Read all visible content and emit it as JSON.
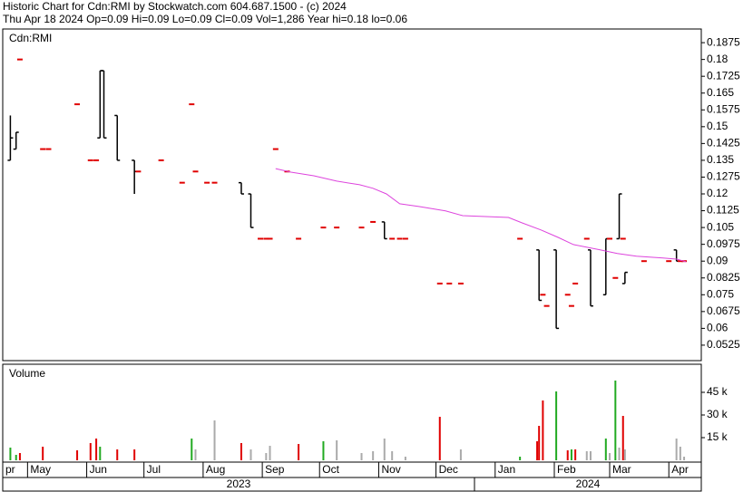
{
  "header": {
    "title": "Historic Chart for Cdn:RMI by Stockwatch.com 604.687.1500 - (c) 2024",
    "subtitle": "Thu Apr 18 2024  Op=0.09  Hi=0.09  Lo=0.09  Cl=0.09  Vol=1,286  Year hi=0.18  lo=0.06"
  },
  "chart_data": [
    {
      "type": "ohlc",
      "xlim": [
        0,
        366
      ],
      "xticks": [
        {
          "value": 0,
          "label": "pr"
        },
        {
          "value": 13,
          "label": "May"
        },
        {
          "value": 44,
          "label": "Jun"
        },
        {
          "value": 74,
          "label": "Jul"
        },
        {
          "value": 105,
          "label": "Aug"
        },
        {
          "value": 136,
          "label": "Sep"
        },
        {
          "value": 166,
          "label": "Oct"
        },
        {
          "value": 197,
          "label": "Nov"
        },
        {
          "value": 227,
          "label": "Dec"
        },
        {
          "value": 258,
          "label": "Jan"
        },
        {
          "value": 289,
          "label": "Feb"
        },
        {
          "value": 318,
          "label": "Mar"
        },
        {
          "value": 349,
          "label": "Apr"
        }
      ],
      "year_labels": [
        "2023",
        "2024"
      ],
      "ylim": [
        0.0456,
        0.1936
      ],
      "yticks": [
        0.0525,
        0.06,
        0.0675,
        0.075,
        0.0825,
        0.09,
        0.0975,
        0.105,
        0.1125,
        0.12,
        0.1275,
        0.135,
        0.1425,
        0.15,
        0.1575,
        0.165,
        0.1725,
        0.18,
        0.1875
      ],
      "series": [
        {
          "name": "Cdn:RMI",
          "range_color": "#000000",
          "flat_color": "#e00000",
          "x": [
            4,
            7,
            9,
            21,
            24,
            39,
            46,
            49,
            51,
            53,
            60,
            69,
            71,
            83,
            94,
            99,
            101,
            107,
            111,
            125,
            130,
            135,
            138,
            140,
            143,
            149,
            155,
            168,
            175,
            188,
            194,
            200,
            204,
            208,
            211,
            229,
            234,
            240,
            271,
            281,
            283,
            285,
            290,
            296,
            298,
            300,
            306,
            308,
            316,
            318,
            321,
            323,
            325,
            326,
            336,
            349,
            353,
            355,
            357
          ],
          "open": [
            0.135,
            0.14,
            0.18,
            0.14,
            0.14,
            0.16,
            0.135,
            0.135,
            0.145,
            0.175,
            0.155,
            0.135,
            0.13,
            0.135,
            0.125,
            0.16,
            0.13,
            0.125,
            0.125,
            0.125,
            0.12,
            0.1,
            0.1,
            0.1,
            0.14,
            0.13,
            0.1,
            0.105,
            0.105,
            0.105,
            0.1075,
            0.1075,
            0.1,
            0.1,
            0.1,
            0.08,
            0.08,
            0.08,
            0.1,
            0.095,
            0.075,
            0.07,
            0.095,
            0.075,
            0.07,
            0.08,
            0.1,
            0.095,
            0.075,
            0.1,
            0.0825,
            0.1,
            0.1,
            0.08,
            0.09,
            0.09,
            0.095,
            0.09,
            0.09
          ],
          "high": [
            0.155,
            0.1475,
            0.18,
            0.14,
            0.14,
            0.16,
            0.135,
            0.135,
            0.175,
            0.175,
            0.155,
            0.135,
            0.13,
            0.135,
            0.125,
            0.16,
            0.13,
            0.125,
            0.125,
            0.125,
            0.12,
            0.1,
            0.1,
            0.1,
            0.14,
            0.13,
            0.1,
            0.105,
            0.105,
            0.105,
            0.1075,
            0.1075,
            0.1,
            0.1,
            0.1,
            0.08,
            0.08,
            0.08,
            0.1,
            0.095,
            0.075,
            0.07,
            0.095,
            0.075,
            0.07,
            0.08,
            0.1,
            0.095,
            0.1,
            0.1,
            0.0825,
            0.12,
            0.1,
            0.085,
            0.09,
            0.09,
            0.095,
            0.09,
            0.09
          ],
          "low": [
            0.135,
            0.14,
            0.18,
            0.14,
            0.14,
            0.16,
            0.135,
            0.135,
            0.145,
            0.145,
            0.135,
            0.12,
            0.13,
            0.135,
            0.125,
            0.16,
            0.13,
            0.125,
            0.125,
            0.12,
            0.105,
            0.1,
            0.1,
            0.1,
            0.14,
            0.13,
            0.1,
            0.105,
            0.105,
            0.105,
            0.1075,
            0.1,
            0.1,
            0.1,
            0.1,
            0.08,
            0.08,
            0.08,
            0.1,
            0.0725,
            0.075,
            0.07,
            0.06,
            0.075,
            0.07,
            0.08,
            0.1,
            0.07,
            0.075,
            0.1,
            0.0825,
            0.1,
            0.1,
            0.08,
            0.09,
            0.09,
            0.09,
            0.09,
            0.09
          ],
          "close": [
            0.145,
            0.1475,
            0.18,
            0.14,
            0.14,
            0.16,
            0.135,
            0.135,
            0.175,
            0.145,
            0.135,
            0.13,
            0.13,
            0.135,
            0.125,
            0.16,
            0.13,
            0.125,
            0.125,
            0.12,
            0.105,
            0.1,
            0.1,
            0.1,
            0.14,
            0.13,
            0.1,
            0.105,
            0.105,
            0.105,
            0.1075,
            0.1,
            0.1,
            0.1,
            0.1,
            0.08,
            0.08,
            0.08,
            0.1,
            0.0725,
            0.075,
            0.07,
            0.06,
            0.075,
            0.07,
            0.08,
            0.1,
            0.07,
            0.1,
            0.1,
            0.0825,
            0.12,
            0.1,
            0.085,
            0.09,
            0.09,
            0.09,
            0.09,
            0.09
          ]
        },
        {
          "color": "#dd44dd",
          "x": [
            143,
            151,
            163,
            175,
            187,
            194,
            201,
            208,
            218,
            232,
            241,
            265,
            272,
            282,
            291,
            299,
            313,
            322,
            332,
            346,
            353,
            358
          ],
          "values": [
            0.1313,
            0.1297,
            0.1281,
            0.1257,
            0.1241,
            0.1225,
            0.12,
            0.1156,
            0.1144,
            0.1124,
            0.1103,
            0.1095,
            0.1071,
            0.1039,
            0.1006,
            0.0974,
            0.095,
            0.0934,
            0.0922,
            0.0914,
            0.0909,
            0.0897
          ]
        }
      ]
    },
    {
      "type": "bar",
      "title": "Volume",
      "ylim": [
        0,
        63600
      ],
      "yticks": [
        {
          "value": 15000,
          "label": "15 k"
        },
        {
          "value": 30000,
          "label": "30 k"
        },
        {
          "value": 45000,
          "label": "45 k"
        }
      ],
      "x": [
        4,
        7,
        9,
        21,
        39,
        46,
        49,
        51,
        60,
        69,
        99,
        101,
        111,
        125,
        130,
        138,
        140,
        155,
        168,
        175,
        188,
        194,
        200,
        204,
        211,
        229,
        240,
        271,
        280,
        281,
        283,
        290,
        296,
        298,
        300,
        306,
        308,
        316,
        318,
        321,
        323,
        325,
        326,
        353,
        355,
        357
      ],
      "values": [
        8400,
        3600,
        4800,
        9000,
        6600,
        11400,
        14400,
        9000,
        7200,
        7200,
        14400,
        7200,
        26400,
        11400,
        7200,
        4800,
        9600,
        10800,
        12600,
        13200,
        4800,
        6000,
        14400,
        6000,
        2400,
        28800,
        7200,
        2400,
        12600,
        22800,
        39600,
        45600,
        6600,
        7200,
        7200,
        6000,
        6000,
        14400,
        4800,
        52800,
        8400,
        29400,
        7200,
        14400,
        9000,
        2400
      ],
      "colors": [
        "#22aa22",
        "#22aa22",
        "#e00000",
        "#e00000",
        "#e00000",
        "#e00000",
        "#e00000",
        "#22aa22",
        "#e00000",
        "#e00000",
        "#22aa22",
        "#aaaaaa",
        "#aaaaaa",
        "#e00000",
        "#aaaaaa",
        "#aaaaaa",
        "#aaaaaa",
        "#e00000",
        "#22aa22",
        "#aaaaaa",
        "#aaaaaa",
        "#aaaaaa",
        "#aaaaaa",
        "#aaaaaa",
        "#aaaaaa",
        "#e00000",
        "#aaaaaa",
        "#22aa22",
        "#e00000",
        "#e00000",
        "#e00000",
        "#22aa22",
        "#e00000",
        "#22aa22",
        "#e00000",
        "#aaaaaa",
        "#aaaaaa",
        "#22aa22",
        "#aaaaaa",
        "#22aa22",
        "#aaaaaa",
        "#e00000",
        "#aaaaaa",
        "#aaaaaa",
        "#aaaaaa",
        "#aaaaaa"
      ]
    }
  ]
}
